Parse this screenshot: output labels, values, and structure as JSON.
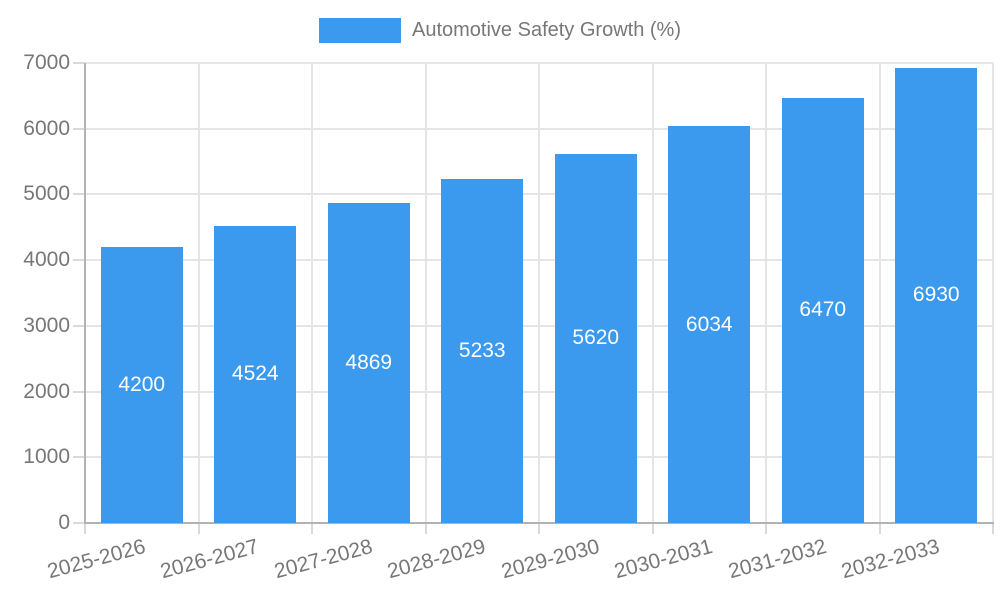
{
  "chart_data": {
    "type": "bar",
    "title": "",
    "legend_label": "Automotive Safety Growth (%)",
    "legend_position": "top",
    "categories": [
      "2025-2026",
      "2026-2027",
      "2027-2028",
      "2028-2029",
      "2029-2030",
      "2030-2031",
      "2031-2032",
      "2032-2033"
    ],
    "values": [
      4200,
      4524,
      4869,
      5233,
      5620,
      6034,
      6470,
      6930
    ],
    "value_labels_shown": true,
    "xlabel": "",
    "ylabel": "",
    "ylim": [
      0,
      7000
    ],
    "ytick_step": 1000,
    "yticks": [
      0,
      1000,
      2000,
      3000,
      4000,
      5000,
      6000,
      7000
    ],
    "grid": true,
    "x_label_rotation_deg": -15,
    "colors": {
      "bar": "#3b99ee",
      "bar_value_label": "#ffffff",
      "axis_text": "#777777",
      "grid_line": "#e5e5e5",
      "axis_line": "#b3b3b3",
      "tick_mark": "#d9d9d9",
      "legend_text": "#777777",
      "background": "#ffffff"
    }
  }
}
